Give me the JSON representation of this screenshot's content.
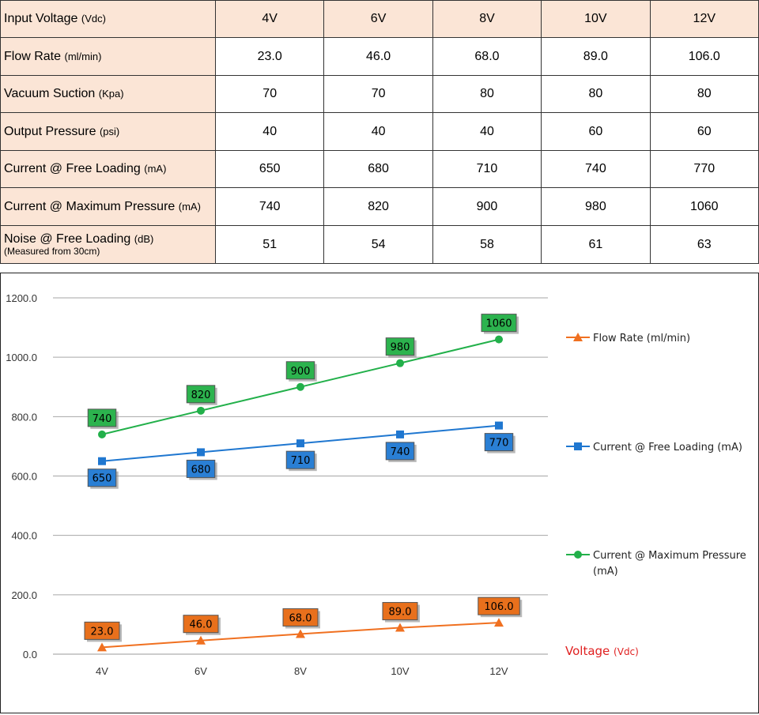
{
  "table": {
    "header": {
      "label": "Input Voltage",
      "unit": "(Vdc)",
      "cols": [
        "4V",
        "6V",
        "8V",
        "10V",
        "12V"
      ]
    },
    "rows": [
      {
        "label": "Flow Rate",
        "unit": "(ml/min)",
        "note": "",
        "values": [
          "23.0",
          "46.0",
          "68.0",
          "89.0",
          "106.0"
        ]
      },
      {
        "label": "Vacuum Suction",
        "unit": "(Kpa)",
        "note": "",
        "values": [
          "70",
          "70",
          "80",
          "80",
          "80"
        ]
      },
      {
        "label": "Output Pressure",
        "unit": "(psi)",
        "note": "",
        "values": [
          "40",
          "40",
          "40",
          "60",
          "60"
        ]
      },
      {
        "label": "Current @ Free Loading",
        "unit": "(mA)",
        "note": "",
        "values": [
          "650",
          "680",
          "710",
          "740",
          "770"
        ]
      },
      {
        "label": "Current @ Maximum Pressure",
        "unit": "(mA)",
        "note": "",
        "values": [
          "740",
          "820",
          "900",
          "980",
          "1060"
        ]
      },
      {
        "label": "Noise @ Free Loading",
        "unit": "(dB)",
        "note": "(Measured from 30cm)",
        "values": [
          "51",
          "54",
          "58",
          "61",
          "63"
        ]
      }
    ]
  },
  "chart_data": {
    "type": "line",
    "categories": [
      "4V",
      "6V",
      "8V",
      "10V",
      "12V"
    ],
    "ylim": [
      0,
      1200
    ],
    "yticks": [
      "0.0",
      "200.0",
      "400.0",
      "600.0",
      "800.0",
      "1000.0",
      "1200.0"
    ],
    "grid": true,
    "xlabel": "Voltage",
    "xlabel_unit": "(Vdc)",
    "legend_position": "right",
    "series": [
      {
        "name": "Flow Rate (ml/min)",
        "legend_lines": [
          "Flow Rate (ml/min)"
        ],
        "marker": "triangle",
        "color": "#f07020",
        "label_fill": "#e8701c",
        "label_pos": "above",
        "values": [
          23.0,
          46.0,
          68.0,
          89.0,
          106.0
        ],
        "labels": [
          "23.0",
          "46.0",
          "68.0",
          "89.0",
          "106.0"
        ]
      },
      {
        "name": "Current @ Free Loading (mA)",
        "legend_lines": [
          "Current @ Free Loading (mA)"
        ],
        "marker": "square",
        "color": "#1f77d0",
        "label_fill": "#2a7fd4",
        "label_pos": "below",
        "values": [
          650,
          680,
          710,
          740,
          770
        ],
        "labels": [
          "650",
          "680",
          "710",
          "740",
          "770"
        ]
      },
      {
        "name": "Current @ Maximum Pressure (mA)",
        "legend_lines": [
          "Current @ Maximum Pressure",
          "(mA)"
        ],
        "marker": "circle",
        "color": "#22b04a",
        "label_fill": "#2cb34e",
        "label_pos": "above",
        "values": [
          740,
          820,
          900,
          980,
          1060
        ],
        "labels": [
          "740",
          "820",
          "900",
          "980",
          "1060"
        ]
      }
    ]
  }
}
